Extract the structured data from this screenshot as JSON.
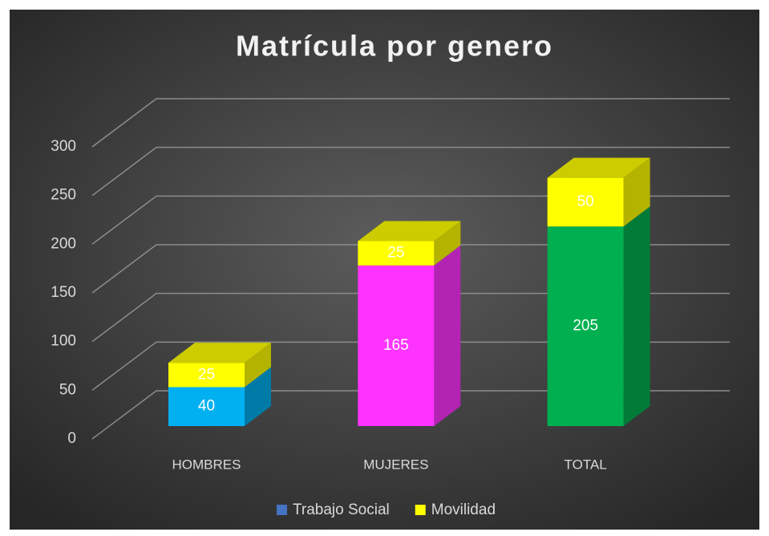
{
  "chart_data": {
    "type": "bar3d_stacked",
    "title": "Matrícula por genero",
    "categories": [
      "HOMBRES",
      "MUJERES",
      "TOTAL"
    ],
    "series": [
      {
        "name": "Trabajo Social",
        "color": "#4472c4",
        "point_colors": [
          "#00b0f0",
          "#ff33ff",
          "#00b050"
        ],
        "values": [
          40,
          165,
          205
        ]
      },
      {
        "name": "Movilidad",
        "color": "#ffff00",
        "values": [
          25,
          25,
          50
        ]
      }
    ],
    "ylim": [
      0,
      300
    ],
    "yticks": [
      0,
      50,
      100,
      150,
      200,
      250,
      300
    ],
    "grid": true,
    "legend": "bottom"
  }
}
